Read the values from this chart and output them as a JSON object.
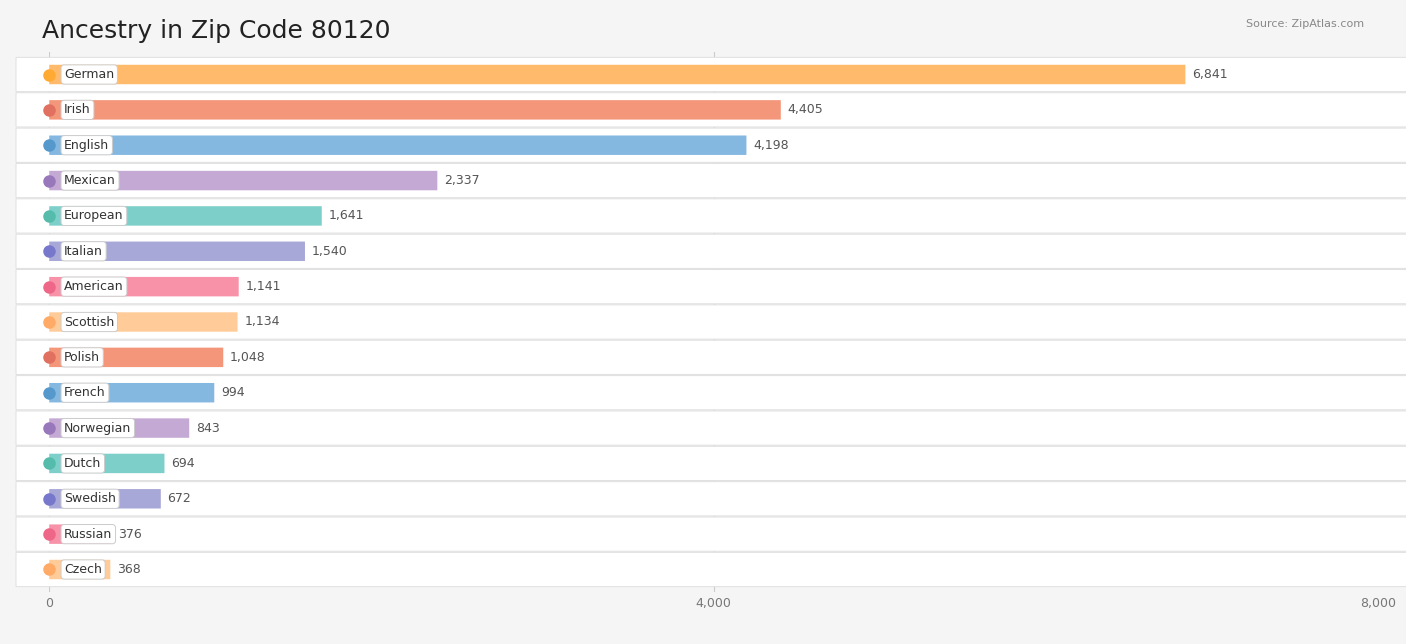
{
  "title": "Ancestry in Zip Code 80120",
  "source": "Source: ZipAtlas.com",
  "categories": [
    "German",
    "Irish",
    "English",
    "Mexican",
    "European",
    "Italian",
    "American",
    "Scottish",
    "Polish",
    "French",
    "Norwegian",
    "Dutch",
    "Swedish",
    "Russian",
    "Czech"
  ],
  "values": [
    6841,
    4405,
    4198,
    2337,
    1641,
    1540,
    1141,
    1134,
    1048,
    994,
    843,
    694,
    672,
    376,
    368
  ],
  "bar_colors": [
    "#FFBB6B",
    "#F4967A",
    "#85B8E0",
    "#C4A9D4",
    "#7DCFCA",
    "#A8A8D8",
    "#F892A8",
    "#FFCC99",
    "#F4967A",
    "#85B8E0",
    "#C4A9D4",
    "#7DCFCA",
    "#A8A8D8",
    "#F892A8",
    "#FFCC99"
  ],
  "dot_colors": [
    "#FFAA33",
    "#E07060",
    "#5599CC",
    "#9977BB",
    "#55BBAA",
    "#7777CC",
    "#EE6688",
    "#FFAA66",
    "#E07060",
    "#5599CC",
    "#9977BB",
    "#55BBAA",
    "#7777CC",
    "#EE6688",
    "#FFAA66"
  ],
  "background_color": "#f5f5f5",
  "xlim": [
    0,
    8000
  ],
  "xticks": [
    0,
    4000,
    8000
  ],
  "title_fontsize": 18,
  "label_fontsize": 9,
  "value_fontsize": 9
}
